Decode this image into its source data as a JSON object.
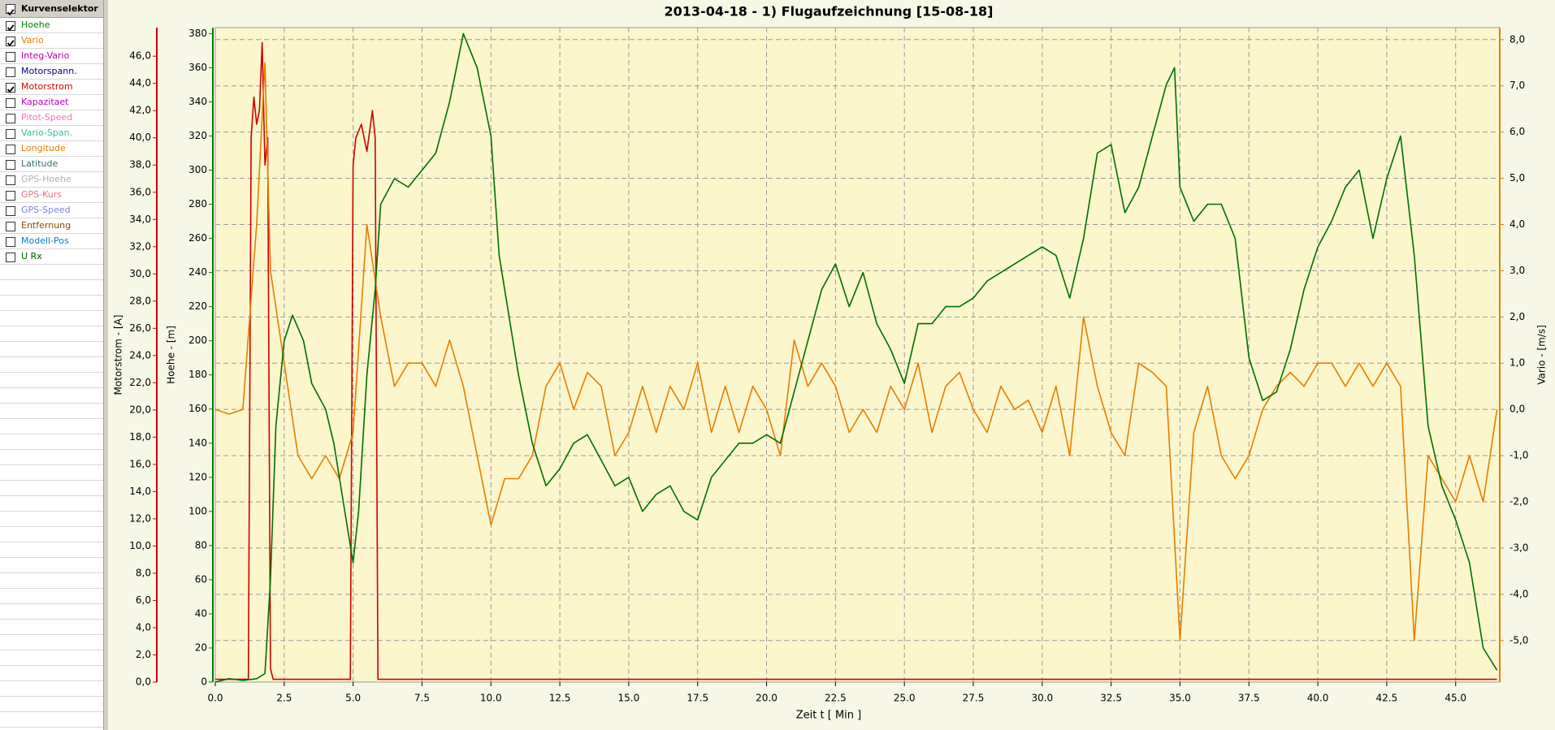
{
  "sidebar": {
    "title": "Kurvenselektor",
    "checked": true,
    "items": [
      {
        "label": "Hoehe",
        "color": "#008000",
        "checked": true
      },
      {
        "label": "Vario",
        "color": "#e67e00",
        "checked": true
      },
      {
        "label": "Integ-Vario",
        "color": "#c000a0",
        "checked": false
      },
      {
        "label": "Motorspann.",
        "color": "#000090",
        "checked": false
      },
      {
        "label": "Motorstrom",
        "color": "#d00000",
        "checked": true
      },
      {
        "label": "Kapazitaet",
        "color": "#c000c0",
        "checked": false
      },
      {
        "label": "Pitot-Speed",
        "color": "#f070c0",
        "checked": false
      },
      {
        "label": "Vario-Span.",
        "color": "#30c0a0",
        "checked": false
      },
      {
        "label": "Longitude",
        "color": "#e08000",
        "checked": false
      },
      {
        "label": "Latitude",
        "color": "#307070",
        "checked": false
      },
      {
        "label": "GPS-Hoehe",
        "color": "#b0b0b0",
        "checked": false
      },
      {
        "label": "GPS-Kurs",
        "color": "#f07070",
        "checked": false
      },
      {
        "label": "GPS-Speed",
        "color": "#8080e0",
        "checked": false
      },
      {
        "label": "Entfernung",
        "color": "#805000",
        "checked": false
      },
      {
        "label": "Modell-Pos",
        "color": "#0080c0",
        "checked": false
      },
      {
        "label": "U Rx",
        "color": "#006000",
        "checked": false
      }
    ]
  },
  "chart_data": {
    "type": "line",
    "title": "2013-04-18 - 1) Flugaufzeichnung [15-08-18]",
    "x_label": "Zeit  t  [ Min ]",
    "xlim": [
      0,
      46.6
    ],
    "xticks": [
      {
        "value": 0,
        "label": "0.0"
      },
      2.5,
      {
        "value": 5,
        "label": "5.0"
      },
      7.5,
      {
        "value": 10,
        "label": "10.0"
      },
      12.5,
      {
        "value": 15,
        "label": "15.0"
      },
      17.5,
      {
        "value": 20,
        "label": "20.0"
      },
      22.5,
      {
        "value": 25,
        "label": "25.0"
      },
      27.5,
      {
        "value": 30,
        "label": "30.0"
      },
      32.5,
      {
        "value": 35,
        "label": "35.0"
      },
      37.5,
      {
        "value": 40,
        "label": "40.0"
      },
      42.5,
      {
        "value": 45,
        "label": "45.0"
      }
    ],
    "grid": true,
    "axes": [
      {
        "label": "Motorstrom  -  [A]",
        "color": "#d00000",
        "lim": [
          0,
          48.1
        ],
        "ticks": [
          {
            "value": 0,
            "label": "0,0"
          },
          {
            "value": 2,
            "label": "2,0"
          },
          {
            "value": 4,
            "label": "4,0"
          },
          {
            "value": 6,
            "label": "6,0"
          },
          {
            "value": 8,
            "label": "8,0"
          },
          {
            "value": 10,
            "label": "10,0"
          },
          {
            "value": 12,
            "label": "12,0"
          },
          {
            "value": 14,
            "label": "14,0"
          },
          {
            "value": 16,
            "label": "16,0"
          },
          {
            "value": 18,
            "label": "18,0"
          },
          {
            "value": 20,
            "label": "20,0"
          },
          {
            "value": 22,
            "label": "22,0"
          },
          {
            "value": 24,
            "label": "24,0"
          },
          {
            "value": 26,
            "label": "26,0"
          },
          {
            "value": 28,
            "label": "28,0"
          },
          {
            "value": 30,
            "label": "30,0"
          },
          {
            "value": 32,
            "label": "32,0"
          },
          {
            "value": 34,
            "label": "34,0"
          },
          {
            "value": 36,
            "label": "36,0"
          },
          {
            "value": 38,
            "label": "38,0"
          },
          {
            "value": 40,
            "label": "40,0"
          },
          {
            "value": 42,
            "label": "42,0"
          },
          {
            "value": 44,
            "label": "44,0"
          },
          {
            "value": 46,
            "label": "46,0"
          }
        ]
      },
      {
        "label": "Hoehe  -  [m]",
        "color": "#008000",
        "lim": [
          0,
          383.5
        ],
        "ticks": [
          0,
          20,
          40,
          60,
          80,
          100,
          120,
          140,
          160,
          180,
          200,
          220,
          240,
          260,
          280,
          300,
          320,
          340,
          360,
          380
        ]
      },
      {
        "label": "Vario  -  [m/s]",
        "color": "#e67e00",
        "lim": [
          -5.9,
          8.26
        ],
        "ticks": [
          {
            "value": -5,
            "label": "-5,0"
          },
          {
            "value": -4,
            "label": "-4,0"
          },
          {
            "value": -3,
            "label": "-3,0"
          },
          {
            "value": -2,
            "label": "-2,0"
          },
          {
            "value": -1,
            "label": "-1,0"
          },
          {
            "value": 0,
            "label": "0,0"
          },
          {
            "value": 1,
            "label": "1,0"
          },
          {
            "value": 2,
            "label": "2,0"
          },
          {
            "value": 3,
            "label": "3,0"
          },
          {
            "value": 4,
            "label": "4,0"
          },
          {
            "value": 5,
            "label": "5,0"
          },
          {
            "value": 6,
            "label": "6,0"
          },
          {
            "value": 7,
            "label": "7,0"
          },
          {
            "value": 8,
            "label": "8,0"
          }
        ]
      }
    ],
    "series": [
      {
        "name": "Motorstrom",
        "color": "#d00000",
        "axis": 0,
        "x": [
          0,
          1.2,
          1.3,
          1.4,
          1.5,
          1.6,
          1.7,
          1.8,
          1.9,
          2.0,
          2.1,
          3,
          4.9,
          5.0,
          5.1,
          5.3,
          5.5,
          5.7,
          5.8,
          5.9,
          7,
          46.5
        ],
        "values": [
          0.2,
          0.2,
          40,
          43,
          41,
          42,
          47,
          38,
          40,
          1,
          0.2,
          0.2,
          0.2,
          38,
          40,
          41,
          39,
          42,
          40,
          0.2,
          0.2,
          0.2
        ]
      },
      {
        "name": "Vario",
        "color": "#e67e00",
        "axis": 2,
        "x": [
          0,
          0.5,
          1,
          1.5,
          1.8,
          2,
          2.5,
          3,
          3.5,
          4,
          4.5,
          5,
          5.5,
          6,
          6.5,
          7,
          7.5,
          8,
          8.5,
          9,
          9.5,
          10,
          10.5,
          11,
          11.5,
          12,
          12.5,
          13,
          13.5,
          14,
          14.5,
          15,
          15.5,
          16,
          16.5,
          17,
          17.5,
          18,
          18.5,
          19,
          19.5,
          20,
          20.5,
          21,
          21.5,
          22,
          22.5,
          23,
          23.5,
          24,
          24.5,
          25,
          25.5,
          26,
          26.5,
          27,
          27.5,
          28,
          28.5,
          29,
          29.5,
          30,
          30.5,
          31,
          31.5,
          32,
          32.5,
          33,
          33.5,
          34,
          34.5,
          35,
          35.5,
          36,
          36.5,
          37,
          37.5,
          38,
          38.5,
          39,
          39.5,
          40,
          40.5,
          41,
          41.5,
          42,
          42.5,
          43,
          43.5,
          44,
          44.5,
          45,
          45.5,
          46,
          46.5
        ],
        "values": [
          0,
          -0.1,
          0,
          4,
          7.5,
          3,
          1,
          -1,
          -1.5,
          -1,
          -1.5,
          -0.5,
          4,
          2,
          0.5,
          1,
          1,
          0.5,
          1.5,
          0.5,
          -1,
          -2.5,
          -1.5,
          -1.5,
          -1,
          0.5,
          1,
          0,
          0.8,
          0.5,
          -1,
          -0.5,
          0.5,
          -0.5,
          0.5,
          0,
          1,
          -0.5,
          0.5,
          -0.5,
          0.5,
          0,
          -1,
          1.5,
          0.5,
          1,
          0.5,
          -0.5,
          0,
          -0.5,
          0.5,
          0,
          1,
          -0.5,
          0.5,
          0.8,
          0,
          -0.5,
          0.5,
          0,
          0.2,
          -0.5,
          0.5,
          -1,
          2,
          0.5,
          -0.5,
          -1,
          1,
          0.8,
          0.5,
          -5,
          -0.5,
          0.5,
          -1,
          -1.5,
          -1,
          0,
          0.5,
          0.8,
          0.5,
          1,
          1,
          0.5,
          1,
          0.5,
          1,
          0.5,
          -5,
          -1,
          -1.5,
          -2,
          -1,
          -2,
          0
        ]
      },
      {
        "name": "Hoehe",
        "color": "#006e00",
        "axis": 1,
        "x": [
          0,
          0.5,
          1,
          1.5,
          1.8,
          2,
          2.2,
          2.5,
          2.8,
          3.2,
          3.5,
          4,
          4.3,
          4.8,
          5,
          5.2,
          5.5,
          5.8,
          6,
          6.5,
          7,
          7.5,
          8,
          8.5,
          9,
          9.5,
          10,
          10.3,
          10.5,
          11,
          11.5,
          12,
          12.5,
          13,
          13.5,
          14,
          14.5,
          15,
          15.5,
          16,
          16.5,
          17,
          17.5,
          18,
          18.5,
          19,
          19.5,
          20,
          20.5,
          21,
          21.5,
          22,
          22.5,
          23,
          23.5,
          24,
          24.5,
          25,
          25.5,
          26,
          26.5,
          27,
          27.5,
          28,
          28.5,
          29,
          29.5,
          30,
          30.5,
          31,
          31.5,
          32,
          32.5,
          33,
          33.5,
          34,
          34.5,
          34.8,
          35,
          35.5,
          36,
          36.5,
          37,
          37.5,
          38,
          38.5,
          39,
          39.5,
          40,
          40.5,
          41,
          41.5,
          42,
          42.5,
          43,
          43.5,
          44,
          44.5,
          45,
          45.5,
          46,
          46.5
        ],
        "values": [
          0,
          2,
          1,
          2,
          5,
          60,
          150,
          200,
          215,
          200,
          175,
          160,
          140,
          90,
          70,
          100,
          180,
          230,
          280,
          295,
          290,
          300,
          310,
          340,
          380,
          360,
          320,
          250,
          230,
          180,
          140,
          115,
          125,
          140,
          145,
          130,
          115,
          120,
          100,
          110,
          115,
          100,
          95,
          120,
          130,
          140,
          140,
          145,
          140,
          170,
          200,
          230,
          245,
          220,
          240,
          210,
          195,
          175,
          210,
          210,
          220,
          220,
          225,
          235,
          240,
          245,
          250,
          255,
          250,
          225,
          260,
          310,
          315,
          275,
          290,
          320,
          350,
          360,
          290,
          270,
          280,
          280,
          260,
          190,
          165,
          170,
          195,
          230,
          255,
          270,
          290,
          300,
          260,
          295,
          320,
          250,
          150,
          115,
          95,
          70,
          20,
          7
        ]
      }
    ]
  }
}
